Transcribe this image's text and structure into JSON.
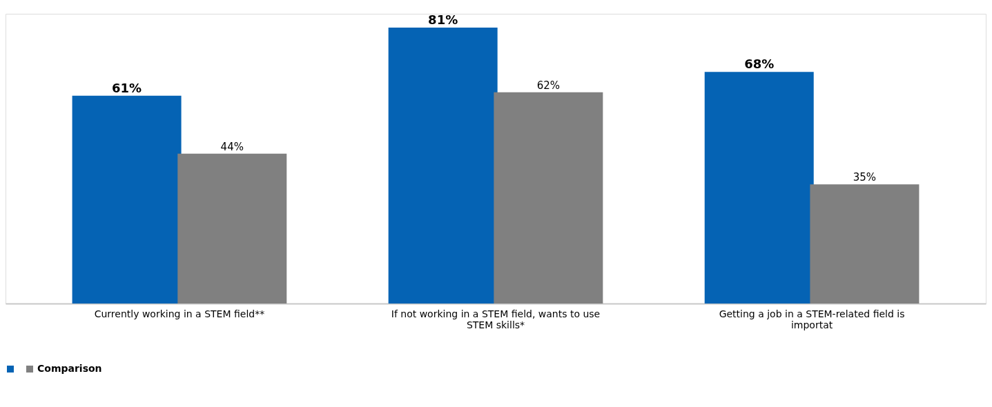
{
  "chart_data": {
    "type": "bar",
    "categories": [
      "Currently working in a STEM field**",
      "If not working in a STEM field, wants to use STEM skills*",
      "Getting a job in a STEM-related field is importat"
    ],
    "series": [
      {
        "color": "#0563b4",
        "values": [
          61,
          81,
          68
        ],
        "value_labels": [
          "61%",
          "81%",
          "68%"
        ]
      },
      {
        "name": "Comparison",
        "color": "#808080",
        "values": [
          44,
          62,
          35
        ],
        "value_labels": [
          "44%",
          "62%",
          "35%"
        ]
      }
    ],
    "legend": "bottom",
    "grid": false
  }
}
